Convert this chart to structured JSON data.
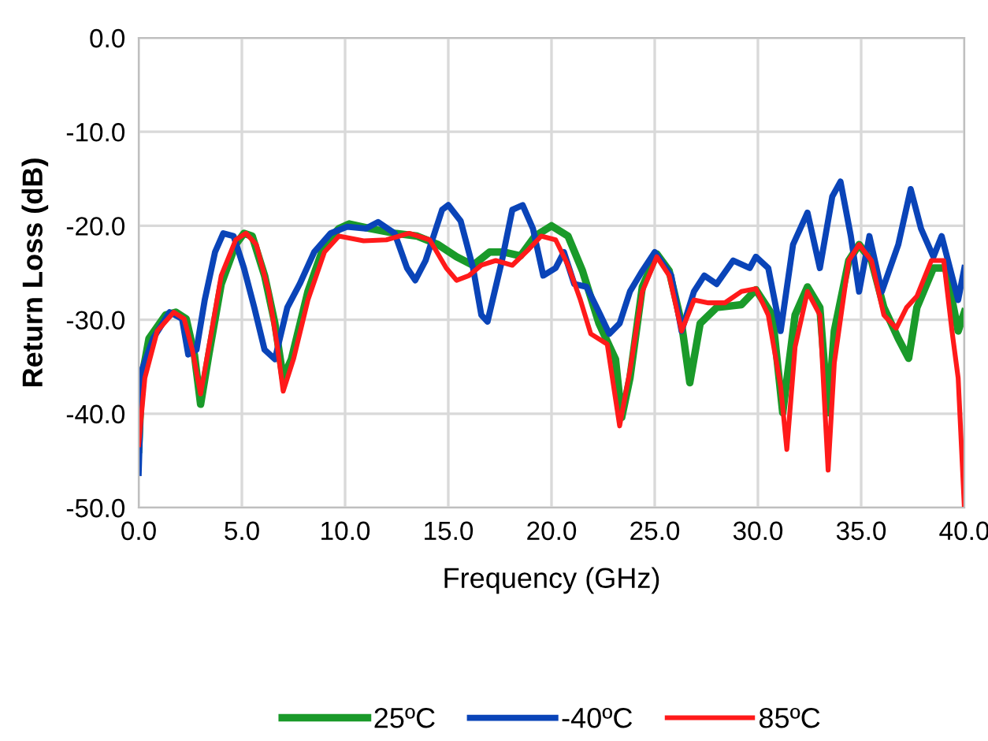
{
  "chart_data": {
    "type": "line",
    "xlabel": "Frequency (GHz)",
    "ylabel": "Return Loss (dB)",
    "xlim": [
      0,
      40
    ],
    "ylim": [
      -50,
      0
    ],
    "xticks": [
      {
        "value": 0,
        "label": "0.0"
      },
      {
        "value": 5,
        "label": "5.0"
      },
      {
        "value": 10,
        "label": "10.0"
      },
      {
        "value": 15,
        "label": "15.0"
      },
      {
        "value": 20,
        "label": "20.0"
      },
      {
        "value": 25,
        "label": "25.0"
      },
      {
        "value": 30,
        "label": "30.0"
      },
      {
        "value": 35,
        "label": "35.0"
      },
      {
        "value": 40,
        "label": "40.0"
      }
    ],
    "yticks": [
      {
        "value": -50,
        "label": "-50.0"
      },
      {
        "value": -40,
        "label": "-40.0"
      },
      {
        "value": -30,
        "label": "-30.0"
      },
      {
        "value": -20,
        "label": "-20.0"
      },
      {
        "value": -10,
        "label": "-10.0"
      },
      {
        "value": 0,
        "label": "0.0"
      }
    ],
    "grid": true,
    "legend": "bottom",
    "marker": "none",
    "line_style": "solid",
    "series": [
      {
        "name": "25ºC",
        "color": "#1a9a2a",
        "x": [
          0,
          0.15,
          0.5,
          1.3,
          1.8,
          2.3,
          2.7,
          3.0,
          3.4,
          4.0,
          4.7,
          5.1,
          5.5,
          6.1,
          6.6,
          7.0,
          7.4,
          8.2,
          9.0,
          9.7,
          10.2,
          11.2,
          12.4,
          13.5,
          14.5,
          15.4,
          16.2,
          17.0,
          17.7,
          18.5,
          19.2,
          20.0,
          20.8,
          21.5,
          22.3,
          23.1,
          23.4,
          23.8,
          24.4,
          25.1,
          25.7,
          26.3,
          26.7,
          27.2,
          28.0,
          29.2,
          29.9,
          30.7,
          31.2,
          31.8,
          32.4,
          33.0,
          33.4,
          33.7,
          34.4,
          34.9,
          35.5,
          36.1,
          36.8,
          37.3,
          37.7,
          38.5,
          39.1,
          39.7,
          40
        ],
        "values": [
          -43.8,
          -36.2,
          -32,
          -29.5,
          -29.2,
          -29.9,
          -33.7,
          -39,
          -33.7,
          -26.2,
          -22,
          -20.8,
          -21.1,
          -25.3,
          -30.4,
          -36.2,
          -34.2,
          -27,
          -22,
          -20.3,
          -19.8,
          -20.3,
          -20.8,
          -21.1,
          -22,
          -23.3,
          -24.2,
          -22.8,
          -22.8,
          -23.2,
          -21.1,
          -20,
          -21.1,
          -24.8,
          -30.4,
          -34.2,
          -40.4,
          -36.2,
          -26.5,
          -23,
          -24.8,
          -30.4,
          -36.7,
          -30.4,
          -28.7,
          -28.4,
          -26.8,
          -29.5,
          -39.9,
          -29.5,
          -26.5,
          -28.7,
          -39.9,
          -31.2,
          -23.7,
          -22,
          -23.7,
          -28.7,
          -32,
          -34.1,
          -28.7,
          -24.5,
          -24.5,
          -31.2,
          -29.2
        ]
      },
      {
        "name": "-40ºC",
        "color": "#0a44b8",
        "x": [
          0,
          0.15,
          0.7,
          1.5,
          2.1,
          2.4,
          2.8,
          3.2,
          3.7,
          4.1,
          4.6,
          5.1,
          5.6,
          6.1,
          6.6,
          7.2,
          7.8,
          8.5,
          9.3,
          10.1,
          11.0,
          11.6,
          12.4,
          13.0,
          13.4,
          13.9,
          14.7,
          15.0,
          15.6,
          16.2,
          16.6,
          16.9,
          17.6,
          18.1,
          18.6,
          19.1,
          19.6,
          20.2,
          20.6,
          21.1,
          21.7,
          22.3,
          22.8,
          23.3,
          23.8,
          24.4,
          25.0,
          25.8,
          26.3,
          26.9,
          27.4,
          28.0,
          28.8,
          29.6,
          29.9,
          30.5,
          31.1,
          31.7,
          32.4,
          33.0,
          33.6,
          34.0,
          34.5,
          34.9,
          35.4,
          36.0,
          36.8,
          37.4,
          37.9,
          38.5,
          38.9,
          39.3,
          39.7,
          40
        ],
        "values": [
          -46.3,
          -35.4,
          -32,
          -29.2,
          -29.9,
          -33.7,
          -33.2,
          -27.9,
          -22.8,
          -20.8,
          -21.1,
          -24.5,
          -28.7,
          -33.2,
          -34.2,
          -28.7,
          -26.2,
          -22.8,
          -20.8,
          -20.1,
          -20.3,
          -19.6,
          -20.8,
          -24.5,
          -25.8,
          -23.7,
          -18.3,
          -17.8,
          -19.5,
          -24.5,
          -29.5,
          -30.2,
          -23.7,
          -18.3,
          -17.8,
          -20.3,
          -25.3,
          -24.5,
          -22.8,
          -26.2,
          -26.5,
          -29.2,
          -31.5,
          -30.4,
          -27,
          -24.8,
          -22.8,
          -25.3,
          -31.2,
          -27,
          -25.3,
          -26.2,
          -23.7,
          -24.5,
          -23.3,
          -24.5,
          -31.2,
          -22,
          -18.6,
          -24.5,
          -16.9,
          -15.3,
          -21.1,
          -27,
          -21.1,
          -27,
          -22,
          -16.1,
          -20.3,
          -23.3,
          -21.1,
          -24.5,
          -27.9,
          -24.5
        ]
      },
      {
        "name": "85ºC",
        "color": "#ff1a1a",
        "x": [
          0,
          0.3,
          0.9,
          1.7,
          2.2,
          2.6,
          3.0,
          3.4,
          4.0,
          4.7,
          5.2,
          5.7,
          6.3,
          6.7,
          7.0,
          7.5,
          8.2,
          9.0,
          9.7,
          10.9,
          12.0,
          13.1,
          14.1,
          14.9,
          15.4,
          16.0,
          16.6,
          17.3,
          18.1,
          18.9,
          19.5,
          20.2,
          20.8,
          21.4,
          21.9,
          22.7,
          23.3,
          23.8,
          24.4,
          25.1,
          25.7,
          26.3,
          26.9,
          27.6,
          28.4,
          29.2,
          29.9,
          30.5,
          31.1,
          31.4,
          31.8,
          32.4,
          33.0,
          33.4,
          33.7,
          34.4,
          34.9,
          35.5,
          36.1,
          36.7,
          37.2,
          37.7,
          38.4,
          39.0,
          39.4,
          39.7,
          40
        ],
        "values": [
          -43.3,
          -36.2,
          -31.2,
          -29.2,
          -29.9,
          -33.2,
          -37.9,
          -32.9,
          -25.3,
          -21.5,
          -20.8,
          -22,
          -27,
          -32.6,
          -37.6,
          -34.2,
          -27.9,
          -22.8,
          -21.1,
          -21.6,
          -21.5,
          -20.8,
          -21.5,
          -24.5,
          -25.8,
          -25.3,
          -24.2,
          -23.7,
          -24.2,
          -22.5,
          -21.1,
          -21.5,
          -24.2,
          -27.9,
          -31.5,
          -32.6,
          -41.3,
          -35.4,
          -27,
          -23.3,
          -25.3,
          -31.2,
          -27.9,
          -28.2,
          -28.2,
          -27,
          -26.7,
          -29.5,
          -37.1,
          -43.8,
          -32.9,
          -27,
          -29.5,
          -46,
          -34.6,
          -23.7,
          -22,
          -23.7,
          -29.5,
          -30.9,
          -28.7,
          -27.5,
          -23.7,
          -23.7,
          -31.2,
          -36.2,
          -50
        ]
      }
    ]
  }
}
